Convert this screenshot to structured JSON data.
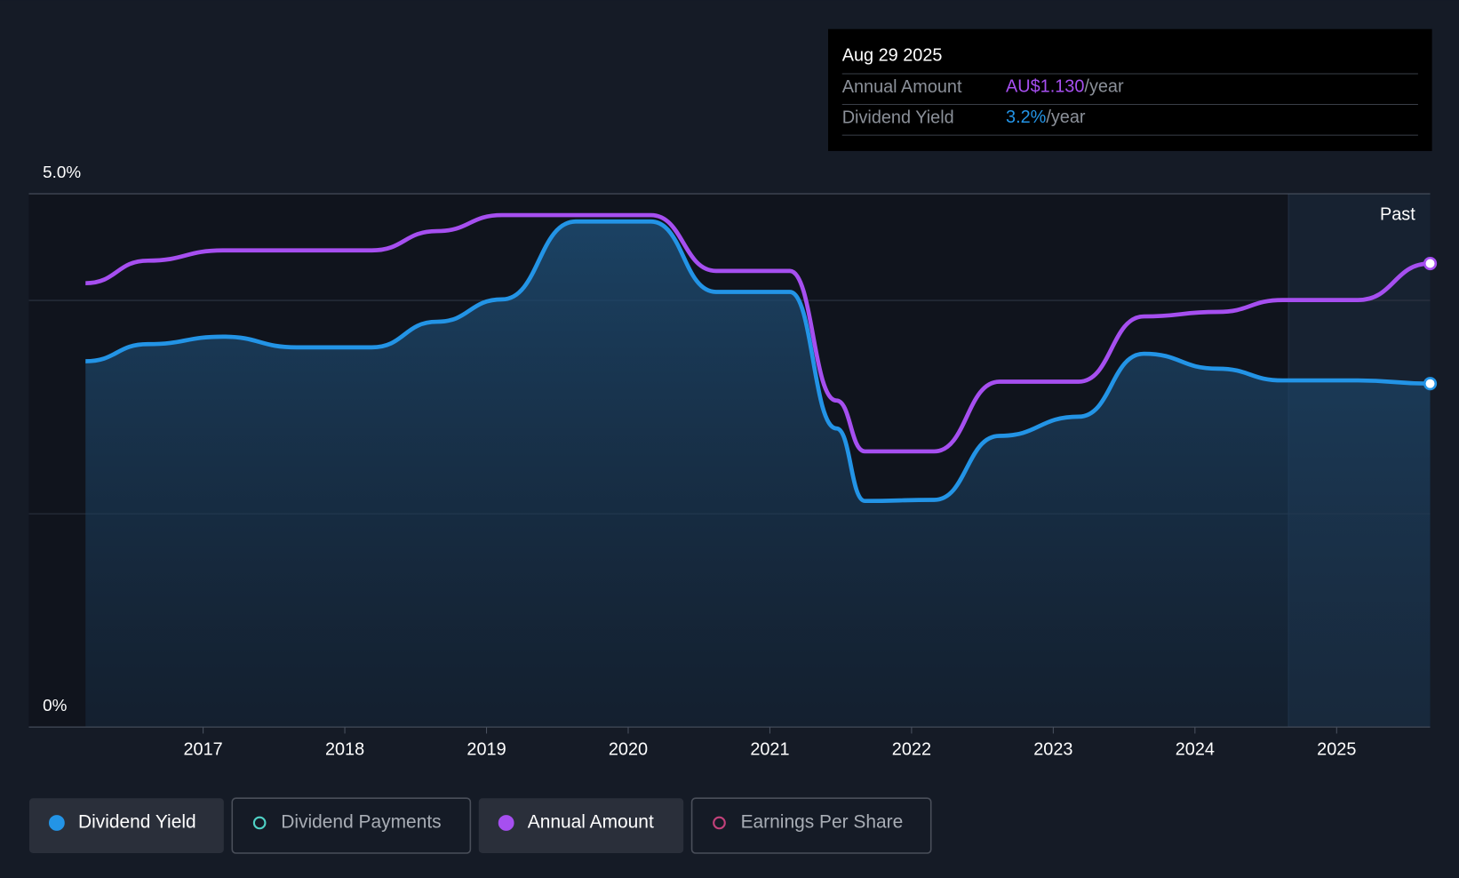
{
  "chart_data": {
    "type": "line",
    "x": [
      2016.17,
      2016.61,
      2017.14,
      2017.66,
      2018.19,
      2018.65,
      2019.11,
      2019.63,
      2020.16,
      2020.62,
      2021.14,
      2021.47,
      2021.67,
      2022.16,
      2022.62,
      2023.18,
      2023.64,
      2024.16,
      2024.62,
      2025.15,
      2025.66
    ],
    "series": [
      {
        "name": "Dividend Yield",
        "color": "#2394e6",
        "values": [
          3.43,
          3.59,
          3.66,
          3.56,
          3.56,
          3.8,
          4.01,
          4.74,
          4.74,
          4.08,
          4.08,
          2.8,
          2.12,
          2.13,
          2.73,
          2.91,
          3.5,
          3.36,
          3.25,
          3.25,
          3.22
        ]
      },
      {
        "name": "Annual Amount",
        "color": "#a64ff0",
        "axis": "y2",
        "values": [
          1.082,
          1.137,
          1.162,
          1.162,
          1.162,
          1.209,
          1.248,
          1.248,
          1.248,
          1.112,
          1.112,
          0.796,
          0.672,
          0.672,
          0.842,
          0.842,
          1.001,
          1.012,
          1.041,
          1.041,
          1.13
        ]
      }
    ],
    "xlim": [
      2015.77,
      2025.66
    ],
    "xticks": [
      2017,
      2018,
      2019,
      2020,
      2021,
      2022,
      2023,
      2024,
      2025
    ],
    "ylim": [
      0,
      5
    ],
    "yticks": [
      {
        "value": 0,
        "label": "0%"
      },
      {
        "value": 5,
        "label": "5.0%"
      }
    ],
    "ygrid": [
      0,
      2,
      4,
      5
    ],
    "y2lim": [
      0,
      1.3
    ],
    "past_start": 2024.66,
    "past_label": "Past",
    "legend": [
      {
        "name": "Dividend Yield",
        "color": "#2394e6",
        "active": true
      },
      {
        "name": "Dividend Payments",
        "color": "#4fd1c5",
        "active": false
      },
      {
        "name": "Annual Amount",
        "color": "#a64ff0",
        "active": true
      },
      {
        "name": "Earnings Per Share",
        "color": "#c2417a",
        "active": false
      }
    ],
    "tooltip": {
      "date": "Aug 29 2025",
      "rows": [
        {
          "label": "Annual Amount",
          "value": "AU$1.130",
          "unit": "/year",
          "color": "#a64ff0"
        },
        {
          "label": "Dividend Yield",
          "value": "3.2%",
          "unit": "/year",
          "color": "#2394e6"
        }
      ]
    }
  }
}
